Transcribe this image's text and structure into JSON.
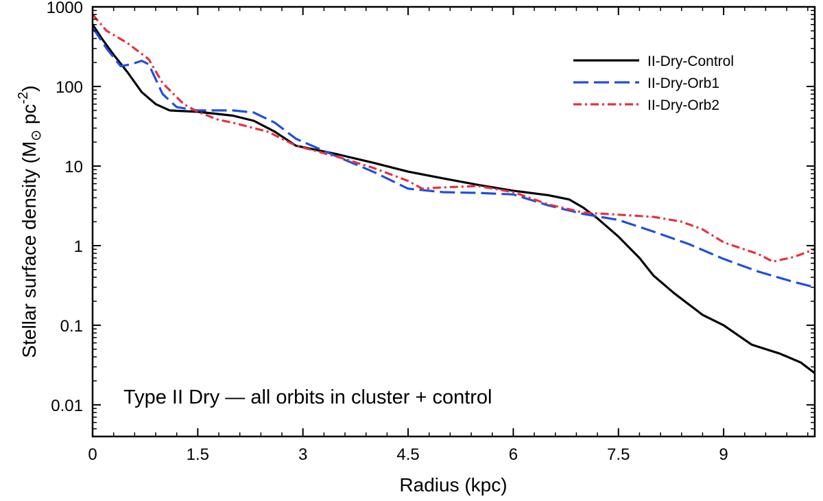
{
  "chart_data": {
    "type": "line",
    "title": "",
    "annotation": "Type II Dry — all orbits in cluster + control",
    "xlabel": "Radius (kpc)",
    "ylabel": {
      "prefix": "Stellar surface density (M",
      "sun_symbol": "⊙",
      "unit": " pc",
      "exponent": "-2",
      "suffix": ")"
    },
    "xlim": [
      0,
      10.3
    ],
    "ylim": [
      0.004,
      1000
    ],
    "yscale": "log",
    "grid": false,
    "legend_position": "top-right",
    "x_ticks": [
      0,
      1.5,
      3,
      4.5,
      6,
      7.5,
      9
    ],
    "x_tick_labels": [
      "0",
      "1.5",
      "3",
      "4.5",
      "6",
      "7.5",
      "9"
    ],
    "y_ticks": [
      0.01,
      0.1,
      1,
      10,
      100,
      1000
    ],
    "y_tick_labels": [
      "0.01",
      "0.1",
      "1",
      "10",
      "100",
      "1000"
    ],
    "series": [
      {
        "name": "II-Dry-Control",
        "color": "#000000",
        "dash": "solid",
        "points": [
          [
            0,
            600
          ],
          [
            0.15,
            380
          ],
          [
            0.3,
            250
          ],
          [
            0.5,
            150
          ],
          [
            0.7,
            85
          ],
          [
            0.9,
            60
          ],
          [
            1.1,
            50
          ],
          [
            1.5,
            48
          ],
          [
            2.0,
            43
          ],
          [
            2.3,
            37
          ],
          [
            2.6,
            27
          ],
          [
            2.9,
            18
          ],
          [
            3.5,
            14
          ],
          [
            4.0,
            11
          ],
          [
            4.5,
            8.5
          ],
          [
            5.0,
            7
          ],
          [
            5.5,
            5.8
          ],
          [
            6.0,
            4.9
          ],
          [
            6.5,
            4.3
          ],
          [
            6.8,
            3.8
          ],
          [
            7.0,
            3.0
          ],
          [
            7.2,
            2.2
          ],
          [
            7.5,
            1.3
          ],
          [
            7.8,
            0.7
          ],
          [
            8.0,
            0.42
          ],
          [
            8.3,
            0.25
          ],
          [
            8.7,
            0.135
          ],
          [
            9.0,
            0.1
          ],
          [
            9.4,
            0.057
          ],
          [
            9.8,
            0.044
          ],
          [
            10.1,
            0.034
          ],
          [
            10.3,
            0.025
          ]
        ]
      },
      {
        "name": "II-Dry-Orb1",
        "color": "#1f4fe0",
        "dash": "dashed",
        "points": [
          [
            0,
            550
          ],
          [
            0.2,
            300
          ],
          [
            0.4,
            180
          ],
          [
            0.55,
            190
          ],
          [
            0.7,
            210
          ],
          [
            0.8,
            190
          ],
          [
            1.0,
            80
          ],
          [
            1.2,
            55
          ],
          [
            1.5,
            50
          ],
          [
            2.0,
            50
          ],
          [
            2.3,
            47
          ],
          [
            2.6,
            35
          ],
          [
            2.9,
            22
          ],
          [
            3.5,
            13
          ],
          [
            4.0,
            8.5
          ],
          [
            4.5,
            5.2
          ],
          [
            5.0,
            4.7
          ],
          [
            5.5,
            4.6
          ],
          [
            6.0,
            4.4
          ],
          [
            6.5,
            3.2
          ],
          [
            7.0,
            2.5
          ],
          [
            7.5,
            2.1
          ],
          [
            8.0,
            1.5
          ],
          [
            8.5,
            1.05
          ],
          [
            9.0,
            0.68
          ],
          [
            9.5,
            0.47
          ],
          [
            10.0,
            0.35
          ],
          [
            10.3,
            0.3
          ]
        ]
      },
      {
        "name": "II-Dry-Orb2",
        "color": "#e83040",
        "dash": "dashdot",
        "points": [
          [
            0,
            800
          ],
          [
            0.2,
            500
          ],
          [
            0.5,
            350
          ],
          [
            0.8,
            220
          ],
          [
            1.0,
            110
          ],
          [
            1.3,
            60
          ],
          [
            1.5,
            48
          ],
          [
            1.8,
            38
          ],
          [
            2.0,
            35
          ],
          [
            2.5,
            27
          ],
          [
            2.9,
            18
          ],
          [
            3.5,
            13
          ],
          [
            4.0,
            9.5
          ],
          [
            4.5,
            6.5
          ],
          [
            4.7,
            5.2
          ],
          [
            5.0,
            5.4
          ],
          [
            5.5,
            5.6
          ],
          [
            6.0,
            4.7
          ],
          [
            6.5,
            3.3
          ],
          [
            7.0,
            2.6
          ],
          [
            7.5,
            2.45
          ],
          [
            8.0,
            2.3
          ],
          [
            8.4,
            2.0
          ],
          [
            8.7,
            1.6
          ],
          [
            9.0,
            1.1
          ],
          [
            9.5,
            0.78
          ],
          [
            9.7,
            0.63
          ],
          [
            10.0,
            0.72
          ],
          [
            10.3,
            0.9
          ]
        ]
      }
    ]
  }
}
